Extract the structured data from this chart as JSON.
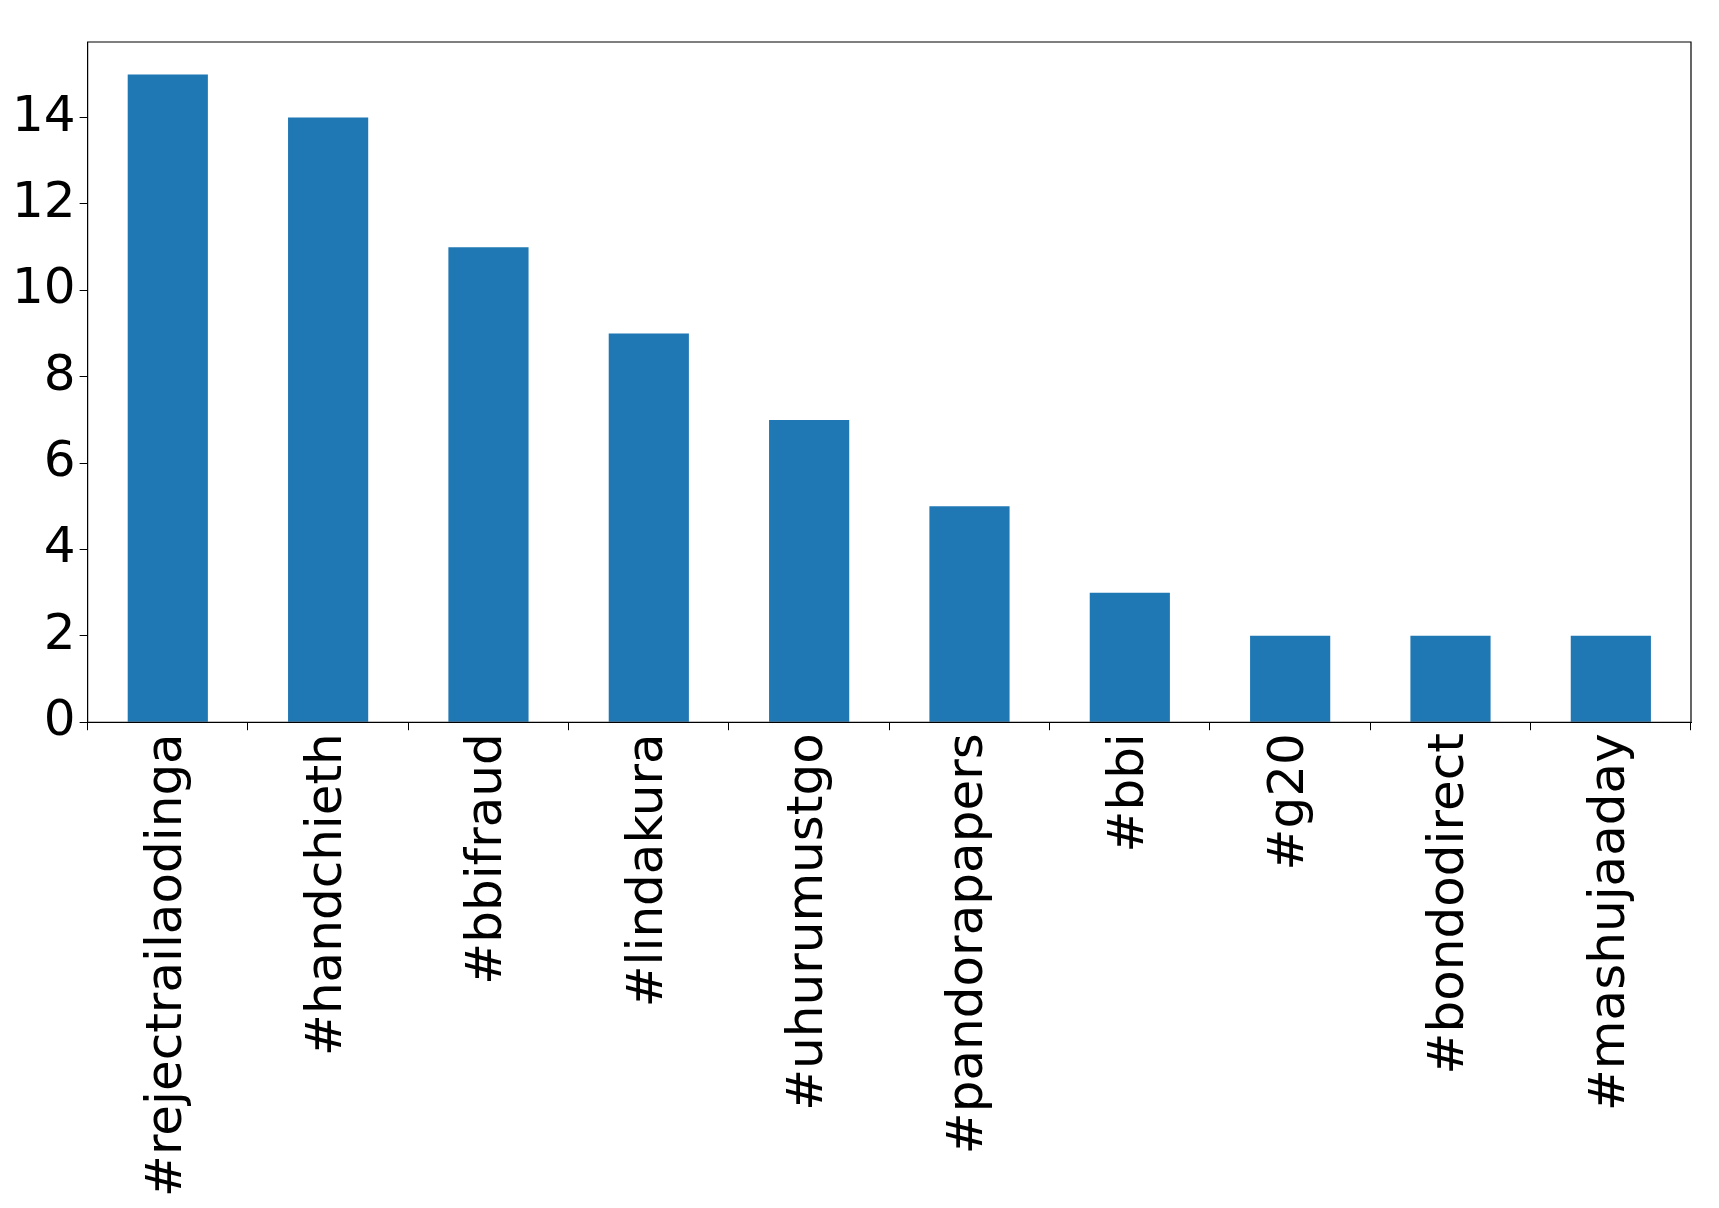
{
  "chart_data": {
    "type": "bar",
    "categories": [
      "#rejectrailaodinga",
      "#handchieth",
      "#bbifraud",
      "#lindakura",
      "#uhurumustgo",
      "#pandorapapers",
      "#bbi",
      "#g20",
      "#bondodirect",
      "#mashujaaday"
    ],
    "values": [
      15,
      14,
      11,
      9,
      7,
      5,
      3,
      2,
      2,
      2
    ],
    "color": "#1f77b4",
    "ylim": [
      0,
      15.75
    ],
    "yticks": [
      0,
      2,
      4,
      6,
      8,
      10,
      12,
      14
    ]
  }
}
